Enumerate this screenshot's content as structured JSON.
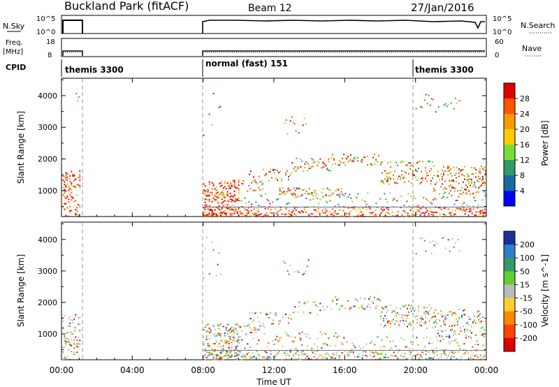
{
  "header": {
    "title": "Buckland Park (fitACF)",
    "beam": "Beam 12",
    "date": "27/Jan/2016"
  },
  "top_panels": {
    "nsky": {
      "label": "N.Sky",
      "ticks": [
        "10^5",
        "10^0"
      ],
      "right_label": "N.Search",
      "right_ticks": [
        "10^5",
        "10^0"
      ]
    },
    "freq": {
      "label": "Freq.",
      "unit": "[MHz]",
      "ticks": [
        "18",
        "8"
      ],
      "right_label": "Nave",
      "right_ticks": [
        "60",
        "0"
      ]
    },
    "cpid": {
      "label": "CPID",
      "segments": [
        {
          "label": "themis 3300",
          "start_h": 0.0
        },
        {
          "label": "normal (fast) 151",
          "start_h": 8.0
        },
        {
          "label": "themis 3300",
          "start_h": 20.0
        }
      ]
    }
  },
  "power_colorbar": {
    "title": "Power [dB]",
    "ticks": [
      "28",
      "24",
      "20",
      "16",
      "12",
      "8",
      "4"
    ],
    "colors": [
      "#e00000",
      "#ff5500",
      "#ff9900",
      "#ffcc00",
      "#77dd33",
      "#339966",
      "#1a6aa0",
      "#0000ff"
    ]
  },
  "velocity_colorbar": {
    "title": "Velocity [m s^-1]",
    "ticks": [
      "200",
      "100",
      "50",
      "15",
      "-15",
      "-50",
      "-100",
      "-200"
    ],
    "colors": [
      "#1c2e9e",
      "#2f7fc8",
      "#339966",
      "#66cc33",
      "#bbbbbb",
      "#ffcc33",
      "#ff8800",
      "#ff4400",
      "#dd0000"
    ]
  },
  "chart_data": [
    {
      "type": "heatmap",
      "panel": "power",
      "ylabel": "Slant Range [km]",
      "yticks": [
        1000,
        2000,
        3000,
        4000
      ],
      "ylim": [
        180,
        4550
      ],
      "xlim_hours": [
        0,
        24
      ],
      "scatter_regions": [
        {
          "x": [
            0.0,
            1.1
          ],
          "y": [
            200,
            1700
          ],
          "intensity": "high"
        },
        {
          "x": [
            8.0,
            10.0
          ],
          "y": [
            200,
            1400
          ],
          "intensity": "high"
        },
        {
          "x": [
            10.0,
            14.0
          ],
          "y": [
            1000,
            1800
          ],
          "intensity": "medium"
        },
        {
          "x": [
            14.0,
            18.0
          ],
          "y": [
            1500,
            2200
          ],
          "intensity": "medium"
        },
        {
          "x": [
            18.0,
            24.0
          ],
          "y": [
            900,
            2000
          ],
          "intensity": "medium"
        },
        {
          "x": [
            8.0,
            24.0
          ],
          "y": [
            200,
            600
          ],
          "intensity": "high"
        }
      ]
    },
    {
      "type": "heatmap",
      "panel": "velocity",
      "ylabel": "Slant Range [km]",
      "xlabel": "Time UT",
      "xticks": [
        "00:00",
        "04:00",
        "08:00",
        "12:00",
        "16:00",
        "20:00",
        "00:00"
      ],
      "yticks": [
        1000,
        2000,
        3000,
        4000
      ],
      "ylim": [
        180,
        4550
      ],
      "xlim_hours": [
        0,
        24
      ]
    }
  ]
}
